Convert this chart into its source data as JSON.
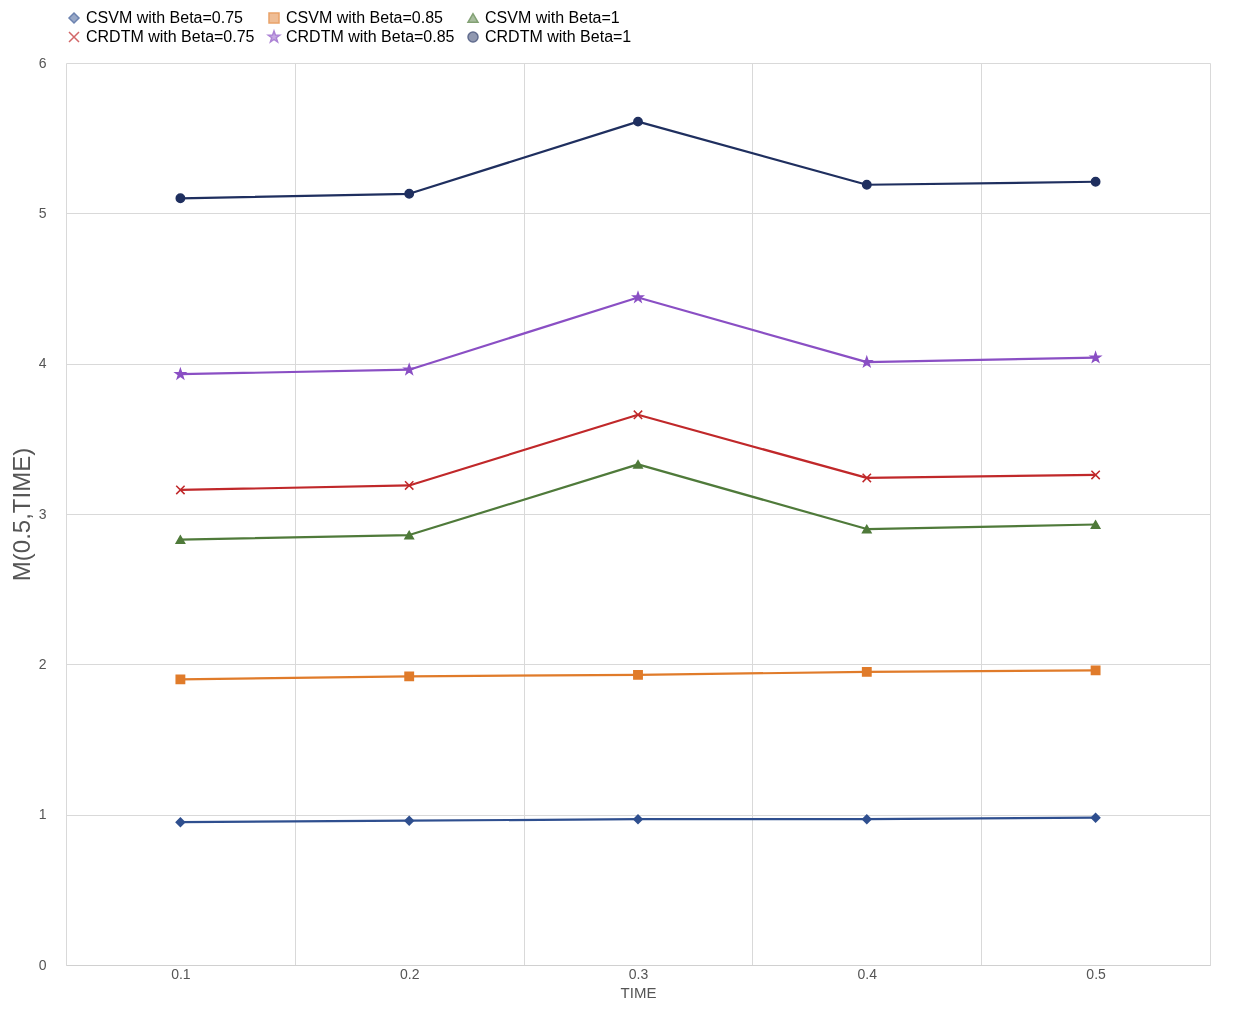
{
  "chart_data": {
    "type": "line",
    "xlabel": "TIME",
    "ylabel": "M(0.5,TIME)",
    "categories": [
      "0.1",
      "0.2",
      "0.3",
      "0.4",
      "0.5"
    ],
    "ylim": [
      0,
      6
    ],
    "yticks": [
      0,
      1,
      2,
      3,
      4,
      5,
      6
    ],
    "grid": true,
    "legend": "top",
    "series": [
      {
        "name": "CSVM with Beta=0.75",
        "color": "#2f4f8f",
        "marker": "diamond",
        "values": [
          0.95,
          0.96,
          0.97,
          0.97,
          0.98
        ]
      },
      {
        "name": "CSVM with Beta=0.85",
        "color": "#e07b2a",
        "marker": "square",
        "values": [
          1.9,
          1.92,
          1.93,
          1.95,
          1.96
        ]
      },
      {
        "name": "CSVM with Beta=1",
        "color": "#4f7a3a",
        "marker": "triangle",
        "values": [
          2.83,
          2.86,
          3.33,
          2.9,
          2.93
        ]
      },
      {
        "name": "CRDTM with Beta=0.75",
        "color": "#c0282a",
        "marker": "cross",
        "values": [
          3.16,
          3.19,
          3.66,
          3.24,
          3.26
        ]
      },
      {
        "name": "CRDTM with Beta=0.85",
        "color": "#8a4fc4",
        "marker": "star",
        "values": [
          3.93,
          3.96,
          4.44,
          4.01,
          4.04
        ]
      },
      {
        "name": "CRDTM with Beta=1",
        "color": "#1f2f5f",
        "marker": "circle",
        "values": [
          5.1,
          5.13,
          5.61,
          5.19,
          5.21
        ]
      }
    ]
  }
}
